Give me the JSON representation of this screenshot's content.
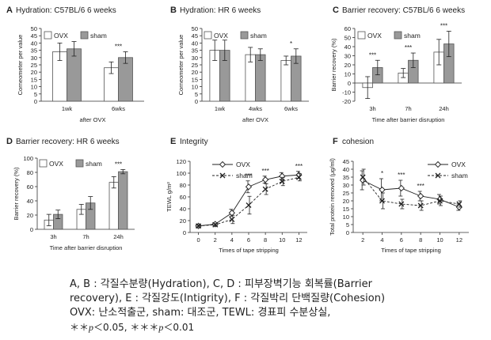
{
  "chart_data": [
    {
      "type": "bar",
      "panel": "A",
      "title": "Hydration: C57BL/6 6 weeks",
      "ylabel": "Corneometer per value",
      "xlabel": "after OVX",
      "categories": [
        "1wk",
        "6wks"
      ],
      "ylim": [
        0,
        50
      ],
      "yticks": [
        0,
        5,
        10,
        15,
        20,
        25,
        30,
        35,
        40,
        45,
        50
      ],
      "legend": "top-left",
      "series": [
        {
          "name": "OVX",
          "color": "#ffffff",
          "values": [
            34,
            23
          ],
          "errors": [
            6,
            4
          ]
        },
        {
          "name": "sham",
          "color": "#999999",
          "values": [
            36,
            30
          ],
          "errors": [
            5,
            4
          ]
        }
      ],
      "annotations": [
        {
          "category": 1,
          "text": "***"
        }
      ]
    },
    {
      "type": "bar",
      "panel": "B",
      "title": "Hydration: HR 6 weeks",
      "ylabel": "Corneometer per value",
      "xlabel": "after OVX",
      "categories": [
        "1wk",
        "4wks",
        "6wks"
      ],
      "ylim": [
        0,
        50
      ],
      "yticks": [
        0,
        5,
        10,
        15,
        20,
        25,
        30,
        35,
        40,
        45,
        50
      ],
      "legend": "top-left",
      "series": [
        {
          "name": "OVX",
          "color": "#ffffff",
          "values": [
            35,
            32,
            28
          ],
          "errors": [
            7,
            5,
            3
          ]
        },
        {
          "name": "sham",
          "color": "#999999",
          "values": [
            35,
            32,
            31
          ],
          "errors": [
            7,
            4,
            5
          ]
        }
      ],
      "annotations": [
        {
          "category": 2,
          "text": "*"
        }
      ]
    },
    {
      "type": "bar",
      "panel": "C",
      "title": "Barrier recovery: C57BL/6 6 weeks",
      "ylabel": "Barrier recovery (%)",
      "xlabel": "Time after barrier disruption",
      "categories": [
        "3h",
        "7h",
        "24h"
      ],
      "ylim": [
        -20,
        60
      ],
      "yticks": [
        -20,
        -10,
        0,
        10,
        20,
        30,
        40,
        50,
        60
      ],
      "legend": "top-left",
      "series": [
        {
          "name": "OVX",
          "color": "#ffffff",
          "values": [
            -5,
            11,
            34
          ],
          "errors": [
            12,
            5,
            14
          ]
        },
        {
          "name": "sham",
          "color": "#999999",
          "values": [
            17,
            25,
            43
          ],
          "errors": [
            8,
            8,
            14
          ]
        }
      ],
      "annotations": [
        {
          "category": 0,
          "text": "***"
        },
        {
          "category": 1,
          "text": "***"
        },
        {
          "category": 2,
          "text": "***"
        }
      ]
    },
    {
      "type": "bar",
      "panel": "D",
      "title": "Barrier recovery: HR 6 weeks",
      "ylabel": "Barrier recovery (%)",
      "xlabel": "Time after barrier disruption",
      "categories": [
        "3h",
        "7h",
        "24h"
      ],
      "ylim": [
        0,
        100
      ],
      "yticks": [
        0,
        20,
        40,
        60,
        80,
        100
      ],
      "legend": "top-left",
      "series": [
        {
          "name": "OVX",
          "color": "#ffffff",
          "values": [
            13,
            28,
            66
          ],
          "errors": [
            8,
            7,
            8
          ]
        },
        {
          "name": "sham",
          "color": "#999999",
          "values": [
            21,
            37,
            81
          ],
          "errors": [
            6,
            9,
            3
          ]
        }
      ],
      "annotations": [
        {
          "category": 2,
          "text": "***"
        }
      ]
    },
    {
      "type": "line",
      "panel": "E",
      "title": "Integrity",
      "ylabel": "TEWL g/m²",
      "xlabel": "Times of tape stripping",
      "x": [
        0,
        2,
        4,
        6,
        8,
        10,
        12
      ],
      "xlim": [
        -1,
        13
      ],
      "xticks": [
        0,
        2,
        4,
        6,
        8,
        10,
        12
      ],
      "ylim": [
        0,
        120
      ],
      "yticks": [
        0,
        20,
        40,
        60,
        80,
        100,
        120
      ],
      "legend": "top-left",
      "series": [
        {
          "name": "OVX",
          "marker": "diamond",
          "dash": false,
          "values": [
            11,
            14,
            33,
            77,
            89,
            95,
            97
          ],
          "errors": [
            2,
            2,
            6,
            10,
            6,
            6,
            6
          ]
        },
        {
          "name": "sham",
          "marker": "x",
          "dash": true,
          "values": [
            11,
            13,
            22,
            46,
            73,
            86,
            93
          ],
          "errors": [
            2,
            2,
            7,
            15,
            9,
            7,
            6
          ]
        }
      ],
      "annotations": [
        {
          "x": 6,
          "text": "***"
        },
        {
          "x": 8,
          "text": "***"
        },
        {
          "x": 12,
          "text": "***"
        }
      ]
    },
    {
      "type": "line",
      "panel": "F",
      "title": "cohesion",
      "ylabel": "Total protein removed (μg/ml)",
      "xlabel": "Times of tape stripping",
      "x": [
        2,
        4,
        6,
        8,
        10,
        12
      ],
      "xlim": [
        1,
        13
      ],
      "xticks": [
        2,
        4,
        6,
        8,
        10,
        12
      ],
      "ylim": [
        0,
        45
      ],
      "yticks": [
        0,
        5,
        10,
        15,
        20,
        25,
        30,
        35,
        40,
        45
      ],
      "legend": "top-right",
      "series": [
        {
          "name": "OVX",
          "marker": "diamond",
          "dash": false,
          "values": [
            33,
            27,
            28,
            23,
            21,
            16
          ],
          "errors": [
            6,
            7,
            5,
            3,
            3,
            2
          ]
        },
        {
          "name": "sham",
          "marker": "x",
          "dash": true,
          "values": [
            35,
            20,
            18,
            17,
            20,
            18
          ],
          "errors": [
            5,
            5,
            3,
            3,
            3,
            2
          ]
        }
      ],
      "annotations": [
        {
          "x": 4,
          "text": "*"
        },
        {
          "x": 6,
          "text": "***"
        },
        {
          "x": 8,
          "text": "***"
        }
      ]
    }
  ],
  "caption": {
    "line1": "A, B : 각질수분량(Hydration), C, D : 피부장벽기능 회복률(Barrier",
    "line2": "recovery), E : 각질강도(Intigrity), F : 각질박리 단백질량(Cohesion)",
    "line3": "OVX: 난소적출군, sham: 대조군, TEWL: 경표피 수분상실,",
    "sig1_stars": "＊＊",
    "sig1_var": "p",
    "sig1_rest": "＜0.05, ",
    "sig2_stars": "＊＊＊",
    "sig2_var": "p",
    "sig2_rest": "＜0.01"
  }
}
